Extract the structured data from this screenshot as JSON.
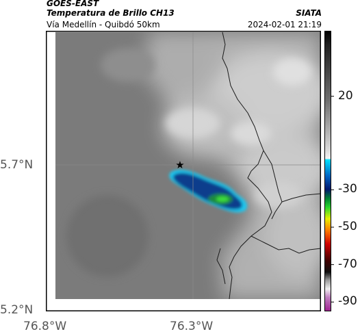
{
  "header": {
    "satellite": "GOES-EAST",
    "product": "Temperatura de Brillo CH13",
    "region": "Vía Medellín - Quibdó 50km",
    "agency": "SIATA",
    "timestamp": "2024-02-01 21:19"
  },
  "map": {
    "lat_labels": [
      "5.7°N",
      "5.2°N"
    ],
    "lon_labels": [
      "76.8°W",
      "76.3°W"
    ],
    "marker_icon": "star-icon",
    "background_color": "#7b7b7b",
    "cloud_color": "#c8c8c8",
    "storm_colors": [
      "#1ec8f0",
      "#0a3c8c",
      "#1e8a3c",
      "#3cdc3c"
    ]
  },
  "colorbar": {
    "tick_labels": [
      "20",
      "-30",
      "-50",
      "-70",
      "-90"
    ],
    "tick_values": [
      20,
      -30,
      -50,
      -70,
      -90
    ],
    "range": [
      -95,
      55
    ]
  }
}
